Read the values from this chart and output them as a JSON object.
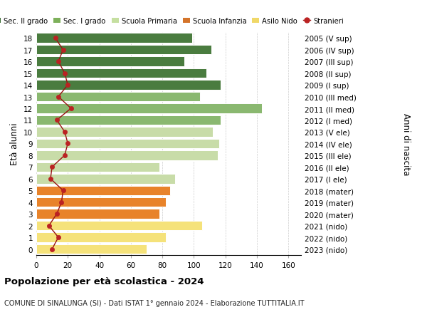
{
  "ages": [
    0,
    1,
    2,
    3,
    4,
    5,
    6,
    7,
    8,
    9,
    10,
    11,
    12,
    13,
    14,
    15,
    16,
    17,
    18
  ],
  "right_labels": [
    "2023 (nido)",
    "2022 (nido)",
    "2021 (nido)",
    "2020 (mater)",
    "2019 (mater)",
    "2018 (mater)",
    "2017 (I ele)",
    "2016 (II ele)",
    "2015 (III ele)",
    "2014 (IV ele)",
    "2013 (V ele)",
    "2012 (I med)",
    "2011 (II med)",
    "2010 (III med)",
    "2009 (I sup)",
    "2008 (II sup)",
    "2007 (III sup)",
    "2006 (IV sup)",
    "2005 (V sup)"
  ],
  "bar_values": [
    70,
    82,
    105,
    78,
    82,
    85,
    88,
    78,
    115,
    116,
    112,
    117,
    143,
    104,
    117,
    108,
    94,
    111,
    99
  ],
  "bar_colors": [
    "#f5e27a",
    "#f5e27a",
    "#f5e27a",
    "#e8832a",
    "#e8832a",
    "#e8832a",
    "#c8dca8",
    "#c8dca8",
    "#c8dca8",
    "#c8dca8",
    "#c8dca8",
    "#8ab870",
    "#8ab870",
    "#8ab870",
    "#4a7c3f",
    "#4a7c3f",
    "#4a7c3f",
    "#4a7c3f",
    "#4a7c3f"
  ],
  "stranieri_values": [
    10,
    14,
    8,
    13,
    16,
    17,
    9,
    10,
    18,
    20,
    18,
    13,
    22,
    14,
    20,
    18,
    14,
    17,
    12
  ],
  "xlim": [
    0,
    168
  ],
  "xticks": [
    0,
    20,
    40,
    60,
    80,
    100,
    120,
    140,
    160
  ],
  "ylabel_left": "Età alunni",
  "ylabel_right": "Anni di nascita",
  "title_bold": "Popolazione per età scolastica - 2024",
  "subtitle": "COMUNE DI SINALUNGA (SI) - Dati ISTAT 1° gennaio 2024 - Elaborazione TUTTITALIA.IT",
  "legend_labels": [
    "Sec. II grado",
    "Sec. I grado",
    "Scuola Primaria",
    "Scuola Infanzia",
    "Asilo Nido",
    "Stranieri"
  ],
  "legend_colors": [
    "#3d6e35",
    "#7db05a",
    "#c5dfa0",
    "#d4742a",
    "#f0d868",
    "#bb1111"
  ],
  "bg_color": "#ffffff",
  "grid_color": "#cccccc",
  "stranieri_line_color": "#991111",
  "stranieri_dot_color": "#bb2222",
  "fig_width": 6.0,
  "fig_height": 4.6,
  "dpi": 100
}
